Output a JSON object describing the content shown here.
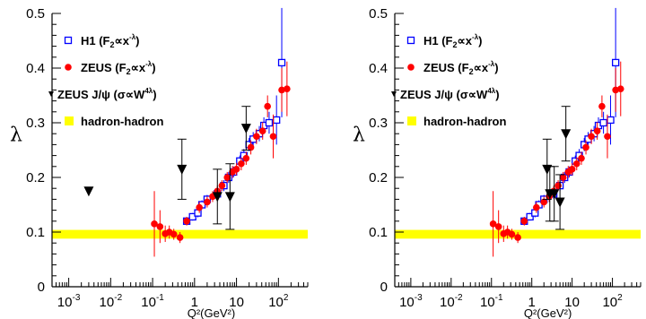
{
  "chart_data": [
    {
      "type": "scatter",
      "xscale": "log",
      "xlim": [
        0.0004,
        500
      ],
      "ylim": [
        0,
        0.5
      ],
      "xlabel": "Q²(GeV²)",
      "ylabel": "λ",
      "y_ticks": [
        "0",
        "0.1",
        "0.2",
        "0.3",
        "0.4",
        "0.5"
      ],
      "x_ticks": [
        {
          "base": "10",
          "exp": "-3",
          "value": 0.001
        },
        {
          "base": "10",
          "exp": "-2",
          "value": 0.01
        },
        {
          "base": "10",
          "exp": "-1",
          "value": 0.1
        },
        {
          "base": "1",
          "exp": "",
          "value": 1
        },
        {
          "base": "10",
          "exp": "",
          "value": 10
        },
        {
          "base": "10",
          "exp": "2",
          "value": 100
        }
      ],
      "band": {
        "name": "hadron-hadron",
        "y_low": 0.088,
        "y_high": 0.104,
        "color": "#ffff00"
      },
      "series": [
        {
          "name": "H1 (F₂∝x⁻λ)",
          "legend_main": "H1 (F",
          "legend_sub": "2",
          "legend_rel": "∝x",
          "legend_sup": "-λ",
          "legend_close": ")",
          "marker": "open-square",
          "color": "#0000ff",
          "points": [
            {
              "x": 0.65,
              "y": 0.12,
              "err": 0.006
            },
            {
              "x": 0.9,
              "y": 0.128,
              "err": 0.007
            },
            {
              "x": 1.2,
              "y": 0.135,
              "err": 0.008
            },
            {
              "x": 1.5,
              "y": 0.15,
              "err": 0.008
            },
            {
              "x": 2.0,
              "y": 0.16,
              "err": 0.008
            },
            {
              "x": 3.5,
              "y": 0.17,
              "err": 0.009
            },
            {
              "x": 5.0,
              "y": 0.185,
              "err": 0.01
            },
            {
              "x": 6.5,
              "y": 0.2,
              "err": 0.01
            },
            {
              "x": 8.5,
              "y": 0.21,
              "err": 0.01
            },
            {
              "x": 12,
              "y": 0.23,
              "err": 0.01
            },
            {
              "x": 15,
              "y": 0.24,
              "err": 0.012
            },
            {
              "x": 20,
              "y": 0.26,
              "err": 0.012
            },
            {
              "x": 25,
              "y": 0.27,
              "err": 0.013
            },
            {
              "x": 35,
              "y": 0.28,
              "err": 0.014
            },
            {
              "x": 45,
              "y": 0.295,
              "err": 0.015
            },
            {
              "x": 60,
              "y": 0.3,
              "err": 0.02
            },
            {
              "x": 90,
              "y": 0.305,
              "err": 0.045
            },
            {
              "x": 120,
              "y": 0.41,
              "err": 0.1
            }
          ]
        },
        {
          "name": "ZEUS (F₂∝x⁻λ)",
          "legend_main": "ZEUS (F",
          "legend_sub": "2",
          "legend_rel": "∝x",
          "legend_sup": "-λ",
          "legend_close": ")",
          "marker": "filled-circle",
          "color": "#ff0000",
          "points": [
            {
              "x": 0.11,
              "y": 0.115,
              "err": 0.06
            },
            {
              "x": 0.15,
              "y": 0.11,
              "err": 0.03
            },
            {
              "x": 0.2,
              "y": 0.097,
              "err": 0.015
            },
            {
              "x": 0.25,
              "y": 0.1,
              "err": 0.012
            },
            {
              "x": 0.32,
              "y": 0.096,
              "err": 0.01
            },
            {
              "x": 0.45,
              "y": 0.09,
              "err": 0.01
            },
            {
              "x": 0.65,
              "y": 0.12,
              "err": 0.008
            },
            {
              "x": 1.3,
              "y": 0.145,
              "err": 0.01
            },
            {
              "x": 2.0,
              "y": 0.155,
              "err": 0.01
            },
            {
              "x": 2.7,
              "y": 0.165,
              "err": 0.01
            },
            {
              "x": 3.5,
              "y": 0.175,
              "err": 0.01
            },
            {
              "x": 4.5,
              "y": 0.185,
              "err": 0.01
            },
            {
              "x": 6.0,
              "y": 0.2,
              "err": 0.01
            },
            {
              "x": 8.0,
              "y": 0.21,
              "err": 0.011
            },
            {
              "x": 10,
              "y": 0.215,
              "err": 0.011
            },
            {
              "x": 13,
              "y": 0.225,
              "err": 0.012
            },
            {
              "x": 17,
              "y": 0.235,
              "err": 0.012
            },
            {
              "x": 22,
              "y": 0.255,
              "err": 0.013
            },
            {
              "x": 30,
              "y": 0.275,
              "err": 0.014
            },
            {
              "x": 42,
              "y": 0.285,
              "err": 0.016
            },
            {
              "x": 55,
              "y": 0.33,
              "err": 0.02
            },
            {
              "x": 75,
              "y": 0.275,
              "err": 0.04
            },
            {
              "x": 120,
              "y": 0.36,
              "err": 0.04
            },
            {
              "x": 160,
              "y": 0.362,
              "err": 0.05
            }
          ]
        },
        {
          "name": "ZEUS J/ψ (σ∝W⁴λ)",
          "legend_main": "ZEUS J/ψ (σ∝W",
          "legend_sub": "",
          "legend_rel": "",
          "legend_sup": "4λ",
          "legend_close": ")",
          "marker": "filled-triangle-down",
          "color": "#000000",
          "points": [
            {
              "x": 0.003,
              "y": 0.175,
              "err": 0
            },
            {
              "x": 0.5,
              "y": 0.215,
              "err": 0.055
            },
            {
              "x": 3.5,
              "y": 0.165,
              "err": 0.05
            },
            {
              "x": 7.0,
              "y": 0.165,
              "err": 0.06
            },
            {
              "x": 17,
              "y": 0.29,
              "err": 0.04
            }
          ]
        }
      ]
    },
    {
      "type": "scatter",
      "xscale": "log",
      "xlim": [
        0.0004,
        500
      ],
      "ylim": [
        0,
        0.5
      ],
      "xlabel": "Q²(GeV²)",
      "ylabel": "λ",
      "y_ticks": [
        "0",
        "0.1",
        "0.2",
        "0.3",
        "0.4",
        "0.5"
      ],
      "x_ticks": [
        {
          "base": "10",
          "exp": "-3",
          "value": 0.001
        },
        {
          "base": "10",
          "exp": "-2",
          "value": 0.01
        },
        {
          "base": "10",
          "exp": "-1",
          "value": 0.1
        },
        {
          "base": "1",
          "exp": "",
          "value": 1
        },
        {
          "base": "10",
          "exp": "",
          "value": 10
        },
        {
          "base": "10",
          "exp": "2",
          "value": 100
        }
      ],
      "band": {
        "name": "hadron-hadron",
        "y_low": 0.088,
        "y_high": 0.104,
        "color": "#ffff00"
      },
      "series": [
        {
          "name": "H1 (F₂∝x⁻λ)",
          "legend_main": "H1 (F",
          "legend_sub": "2",
          "legend_rel": "∝x",
          "legend_sup": "-λ",
          "legend_close": ")",
          "marker": "open-square",
          "color": "#0000ff",
          "points": [
            {
              "x": 0.65,
              "y": 0.12,
              "err": 0.006
            },
            {
              "x": 0.9,
              "y": 0.128,
              "err": 0.007
            },
            {
              "x": 1.2,
              "y": 0.135,
              "err": 0.008
            },
            {
              "x": 1.5,
              "y": 0.15,
              "err": 0.008
            },
            {
              "x": 2.0,
              "y": 0.16,
              "err": 0.008
            },
            {
              "x": 3.5,
              "y": 0.17,
              "err": 0.009
            },
            {
              "x": 5.0,
              "y": 0.185,
              "err": 0.01
            },
            {
              "x": 6.5,
              "y": 0.2,
              "err": 0.01
            },
            {
              "x": 8.5,
              "y": 0.21,
              "err": 0.01
            },
            {
              "x": 12,
              "y": 0.23,
              "err": 0.01
            },
            {
              "x": 15,
              "y": 0.24,
              "err": 0.012
            },
            {
              "x": 20,
              "y": 0.26,
              "err": 0.012
            },
            {
              "x": 25,
              "y": 0.27,
              "err": 0.013
            },
            {
              "x": 35,
              "y": 0.28,
              "err": 0.014
            },
            {
              "x": 45,
              "y": 0.295,
              "err": 0.015
            },
            {
              "x": 60,
              "y": 0.3,
              "err": 0.02
            },
            {
              "x": 90,
              "y": 0.305,
              "err": 0.045
            },
            {
              "x": 120,
              "y": 0.41,
              "err": 0.1
            }
          ]
        },
        {
          "name": "ZEUS (F₂∝x⁻λ)",
          "legend_main": "ZEUS (F",
          "legend_sub": "2",
          "legend_rel": "∝x",
          "legend_sup": "-λ",
          "legend_close": ")",
          "marker": "filled-circle",
          "color": "#ff0000",
          "points": [
            {
              "x": 0.11,
              "y": 0.115,
              "err": 0.06
            },
            {
              "x": 0.15,
              "y": 0.11,
              "err": 0.03
            },
            {
              "x": 0.2,
              "y": 0.097,
              "err": 0.015
            },
            {
              "x": 0.25,
              "y": 0.1,
              "err": 0.012
            },
            {
              "x": 0.32,
              "y": 0.096,
              "err": 0.01
            },
            {
              "x": 0.45,
              "y": 0.09,
              "err": 0.01
            },
            {
              "x": 0.65,
              "y": 0.12,
              "err": 0.008
            },
            {
              "x": 1.3,
              "y": 0.145,
              "err": 0.01
            },
            {
              "x": 2.0,
              "y": 0.155,
              "err": 0.01
            },
            {
              "x": 2.7,
              "y": 0.165,
              "err": 0.01
            },
            {
              "x": 3.5,
              "y": 0.175,
              "err": 0.01
            },
            {
              "x": 4.5,
              "y": 0.185,
              "err": 0.01
            },
            {
              "x": 6.0,
              "y": 0.2,
              "err": 0.01
            },
            {
              "x": 8.0,
              "y": 0.21,
              "err": 0.011
            },
            {
              "x": 10,
              "y": 0.215,
              "err": 0.011
            },
            {
              "x": 13,
              "y": 0.225,
              "err": 0.012
            },
            {
              "x": 17,
              "y": 0.235,
              "err": 0.012
            },
            {
              "x": 22,
              "y": 0.255,
              "err": 0.013
            },
            {
              "x": 30,
              "y": 0.275,
              "err": 0.014
            },
            {
              "x": 42,
              "y": 0.285,
              "err": 0.016
            },
            {
              "x": 55,
              "y": 0.33,
              "err": 0.02
            },
            {
              "x": 75,
              "y": 0.275,
              "err": 0.04
            },
            {
              "x": 120,
              "y": 0.36,
              "err": 0.04
            },
            {
              "x": 160,
              "y": 0.362,
              "err": 0.05
            }
          ]
        },
        {
          "name": "ZEUS J/ψ (σ∝W⁴λ)",
          "legend_main": "ZEUS J/ψ (σ∝W",
          "legend_sub": "",
          "legend_rel": "",
          "legend_sup": "4λ",
          "legend_close": ")",
          "marker": "filled-triangle-down",
          "color": "#000000",
          "points": [
            {
              "x": 2.4,
              "y": 0.215,
              "err": 0.055
            },
            {
              "x": 2.8,
              "y": 0.17,
              "err": 0.05
            },
            {
              "x": 3.6,
              "y": 0.17,
              "err": 0.05
            },
            {
              "x": 5.0,
              "y": 0.155,
              "err": 0.05
            },
            {
              "x": 7.0,
              "y": 0.28,
              "err": 0.05
            }
          ]
        }
      ]
    }
  ]
}
